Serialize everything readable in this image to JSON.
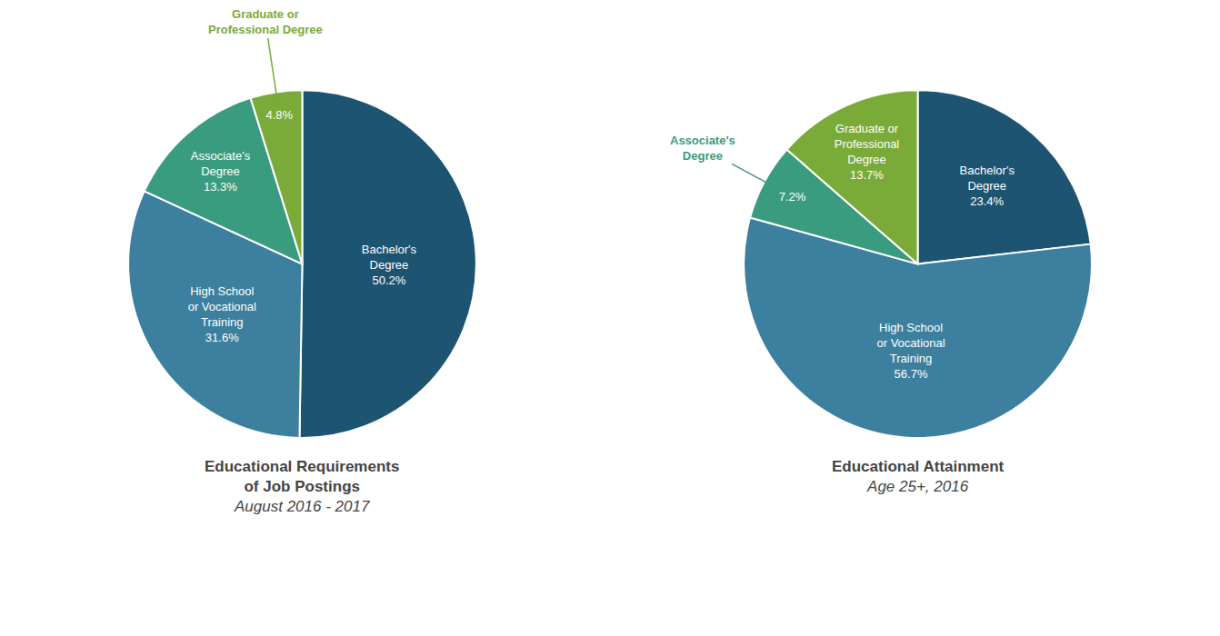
{
  "chart_data": [
    {
      "type": "pie",
      "title": "Educational Requirements\nof Job Postings",
      "subtitle": "August 2016 - 2017",
      "categories": [
        "Bachelor's\nDegree",
        "High School\nor Vocational\nTraining",
        "Associate's\nDegree",
        null
      ],
      "values": [
        50.2,
        31.6,
        13.3,
        4.8
      ],
      "value_labels": [
        "50.2%",
        "31.6%",
        "13.3%",
        "4.8%"
      ],
      "colors": [
        "#1d5471",
        "#3d7f9e",
        "#3a9c7e",
        "#7aaa38"
      ],
      "data_labels": true,
      "annotations": [
        {
          "text": "Graduate or\nProfessional Degree",
          "color": "#7aaa38"
        }
      ]
    },
    {
      "type": "pie",
      "title": "Educational Attainment",
      "subtitle": "Age 25+, 2016",
      "categories": [
        "Bachelor's\nDegree",
        "High School\nor Vocational\nTraining",
        null,
        "Graduate or\nProfessional\nDegree"
      ],
      "values": [
        23.4,
        56.7,
        7.2,
        13.7
      ],
      "value_labels": [
        "23.4%",
        "56.7%",
        "7.2%",
        "13.7%"
      ],
      "colors": [
        "#1d5471",
        "#3d7f9e",
        "#3a9c7e",
        "#7aaa38"
      ],
      "data_labels": true,
      "annotations": [
        {
          "text": "Associate's\nDegree",
          "color": "#3a9c7e"
        }
      ]
    }
  ]
}
